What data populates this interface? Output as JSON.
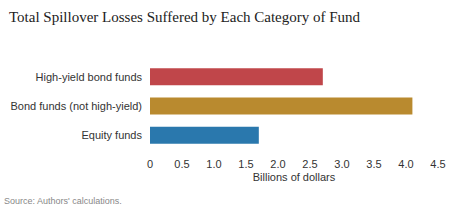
{
  "chart_data": {
    "type": "bar",
    "orientation": "horizontal",
    "title": "Total Spillover Losses Suffered by Each Category of Fund",
    "categories": [
      "High-yield bond funds",
      "Bond funds (not high-yield)",
      "Equity funds"
    ],
    "values": [
      2.7,
      4.1,
      1.7
    ],
    "colors": [
      "#c0464a",
      "#b98a2f",
      "#2a78ad"
    ],
    "x_label": "Billions of dollars",
    "xlim": [
      0,
      4.5
    ],
    "xticks": [
      0,
      0.5,
      {
        "value": 1,
        "label": "1.0"
      },
      1.5,
      {
        "value": 2,
        "label": "2.0"
      },
      2.5,
      {
        "value": 3,
        "label": "3.0"
      },
      3.5,
      {
        "value": 4,
        "label": "4.0"
      },
      4.5
    ],
    "grid": false,
    "source": "Source: Authors' calculations."
  }
}
